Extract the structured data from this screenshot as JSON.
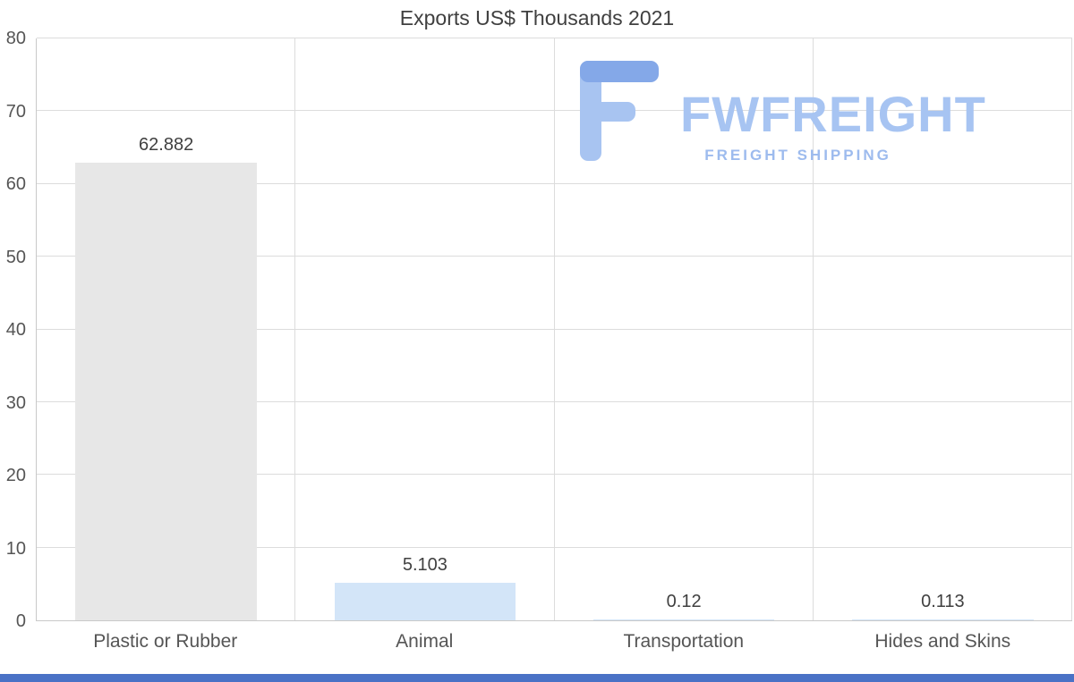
{
  "chart_data": {
    "type": "bar",
    "title": "Exports US$ Thousands 2021",
    "categories": [
      "Plastic or Rubber",
      "Animal",
      "Transportation",
      "Hides and Skins"
    ],
    "values": [
      62.882,
      5.103,
      0.12,
      0.113
    ],
    "value_labels": [
      "62.882",
      "5.103",
      "0.12",
      "0.113"
    ],
    "xlabel": "",
    "ylabel": "",
    "ylim": [
      0,
      80
    ],
    "yticks": [
      0,
      10,
      20,
      30,
      40,
      50,
      60,
      70,
      80
    ],
    "grid": true,
    "legend": "none",
    "bar_colors": [
      "#e7e7e7",
      "#d3e5f8",
      "#d3e5f8",
      "#d3e5f8"
    ]
  },
  "watermark": {
    "brand": "FWFREIGHT",
    "tagline": "FREIGHT SHIPPING"
  },
  "colors": {
    "bar_gray": "#e7e7e7",
    "bar_blue": "#d3e5f8",
    "gridline": "#dcdcdc",
    "axis_line": "#c9c9c9",
    "title_text": "#404040",
    "tick_text": "#555555",
    "logo_blue_light": "#a7c4f2",
    "logo_blue_mid": "#84a8e8",
    "footer_accent": "#4a72c6"
  }
}
